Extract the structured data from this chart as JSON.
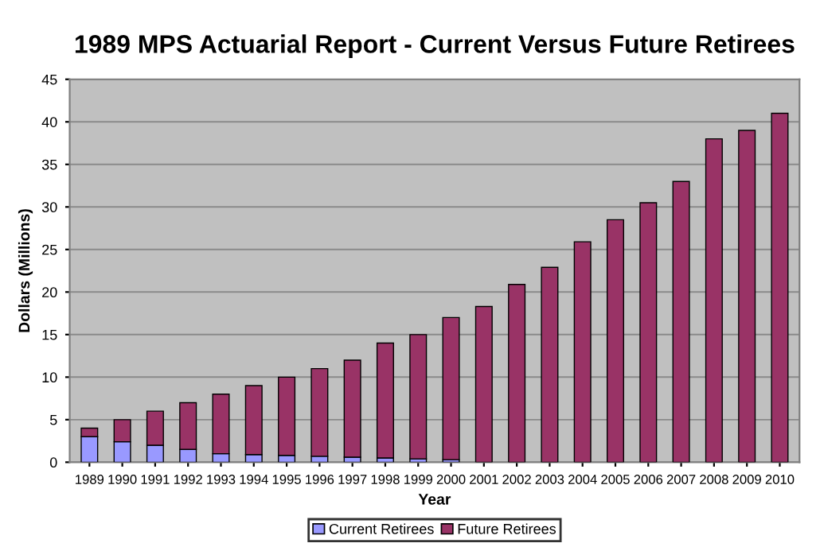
{
  "chart_data": {
    "type": "bar",
    "title": "1989 MPS Actuarial Report - Current Versus Future Retirees",
    "xlabel": "Year",
    "ylabel": "Dollars (Millions)",
    "categories": [
      "1989",
      "1990",
      "1991",
      "1992",
      "1993",
      "1994",
      "1995",
      "1996",
      "1997",
      "1998",
      "1999",
      "2000",
      "2001",
      "2002",
      "2003",
      "2004",
      "2005",
      "2006",
      "2007",
      "2008",
      "2009",
      "2010"
    ],
    "series": [
      {
        "name": "Current Retirees",
        "color": "#9999ff",
        "values": [
          3,
          2.4,
          2,
          1.5,
          1,
          0.9,
          0.8,
          0.7,
          0.6,
          0.5,
          0.4,
          0.3,
          null,
          null,
          null,
          null,
          null,
          null,
          null,
          null,
          null,
          null
        ]
      },
      {
        "name": "Future Retirees",
        "color": "#993366",
        "values": [
          1,
          2.6,
          4,
          5.5,
          7,
          8.1,
          9.2,
          10.3,
          11.4,
          13.5,
          14.6,
          16.7,
          18.3,
          20.9,
          22.9,
          25.9,
          28.5,
          30.5,
          33,
          38,
          39,
          41
        ]
      }
    ],
    "stacked": true,
    "ylim": [
      0,
      45
    ],
    "yticks": [
      0,
      5,
      10,
      15,
      20,
      25,
      30,
      35,
      40,
      45
    ],
    "grid": "y",
    "legend": "bottom"
  }
}
